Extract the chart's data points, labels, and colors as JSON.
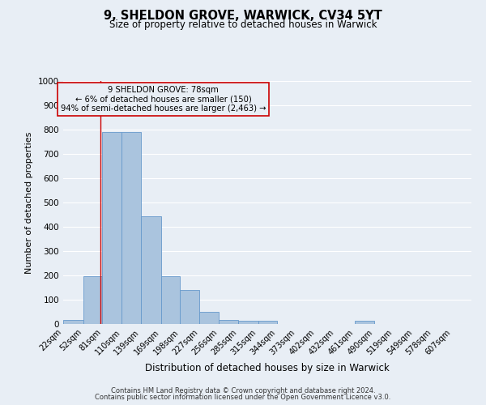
{
  "title": "9, SHELDON GROVE, WARWICK, CV34 5YT",
  "subtitle": "Size of property relative to detached houses in Warwick",
  "xlabel": "Distribution of detached houses by size in Warwick",
  "ylabel": "Number of detached properties",
  "bin_labels": [
    "22sqm",
    "52sqm",
    "81sqm",
    "110sqm",
    "139sqm",
    "169sqm",
    "198sqm",
    "227sqm",
    "256sqm",
    "285sqm",
    "315sqm",
    "344sqm",
    "373sqm",
    "402sqm",
    "432sqm",
    "461sqm",
    "490sqm",
    "519sqm",
    "549sqm",
    "578sqm",
    "607sqm"
  ],
  "bin_edges": [
    22,
    52,
    81,
    110,
    139,
    169,
    198,
    227,
    256,
    285,
    315,
    344,
    373,
    402,
    432,
    461,
    490,
    519,
    549,
    578,
    607
  ],
  "bar_heights": [
    18,
    197,
    790,
    790,
    443,
    197,
    140,
    50,
    18,
    12,
    12,
    0,
    0,
    0,
    0,
    12,
    0,
    0,
    0,
    0,
    0
  ],
  "bar_color": "#aac4de",
  "bar_edge_color": "#6699cc",
  "property_value": 78,
  "marker_line_color": "#cc0000",
  "annotation_box_edge_color": "#cc0000",
  "annotation_lines": [
    "9 SHELDON GROVE: 78sqm",
    "← 6% of detached houses are smaller (150)",
    "94% of semi-detached houses are larger (2,463) →"
  ],
  "ylim": [
    0,
    1000
  ],
  "yticks": [
    0,
    100,
    200,
    300,
    400,
    500,
    600,
    700,
    800,
    900,
    1000
  ],
  "bg_color": "#e8eef5",
  "grid_color": "#ffffff",
  "footer_lines": [
    "Contains HM Land Registry data © Crown copyright and database right 2024.",
    "Contains public sector information licensed under the Open Government Licence v3.0."
  ]
}
